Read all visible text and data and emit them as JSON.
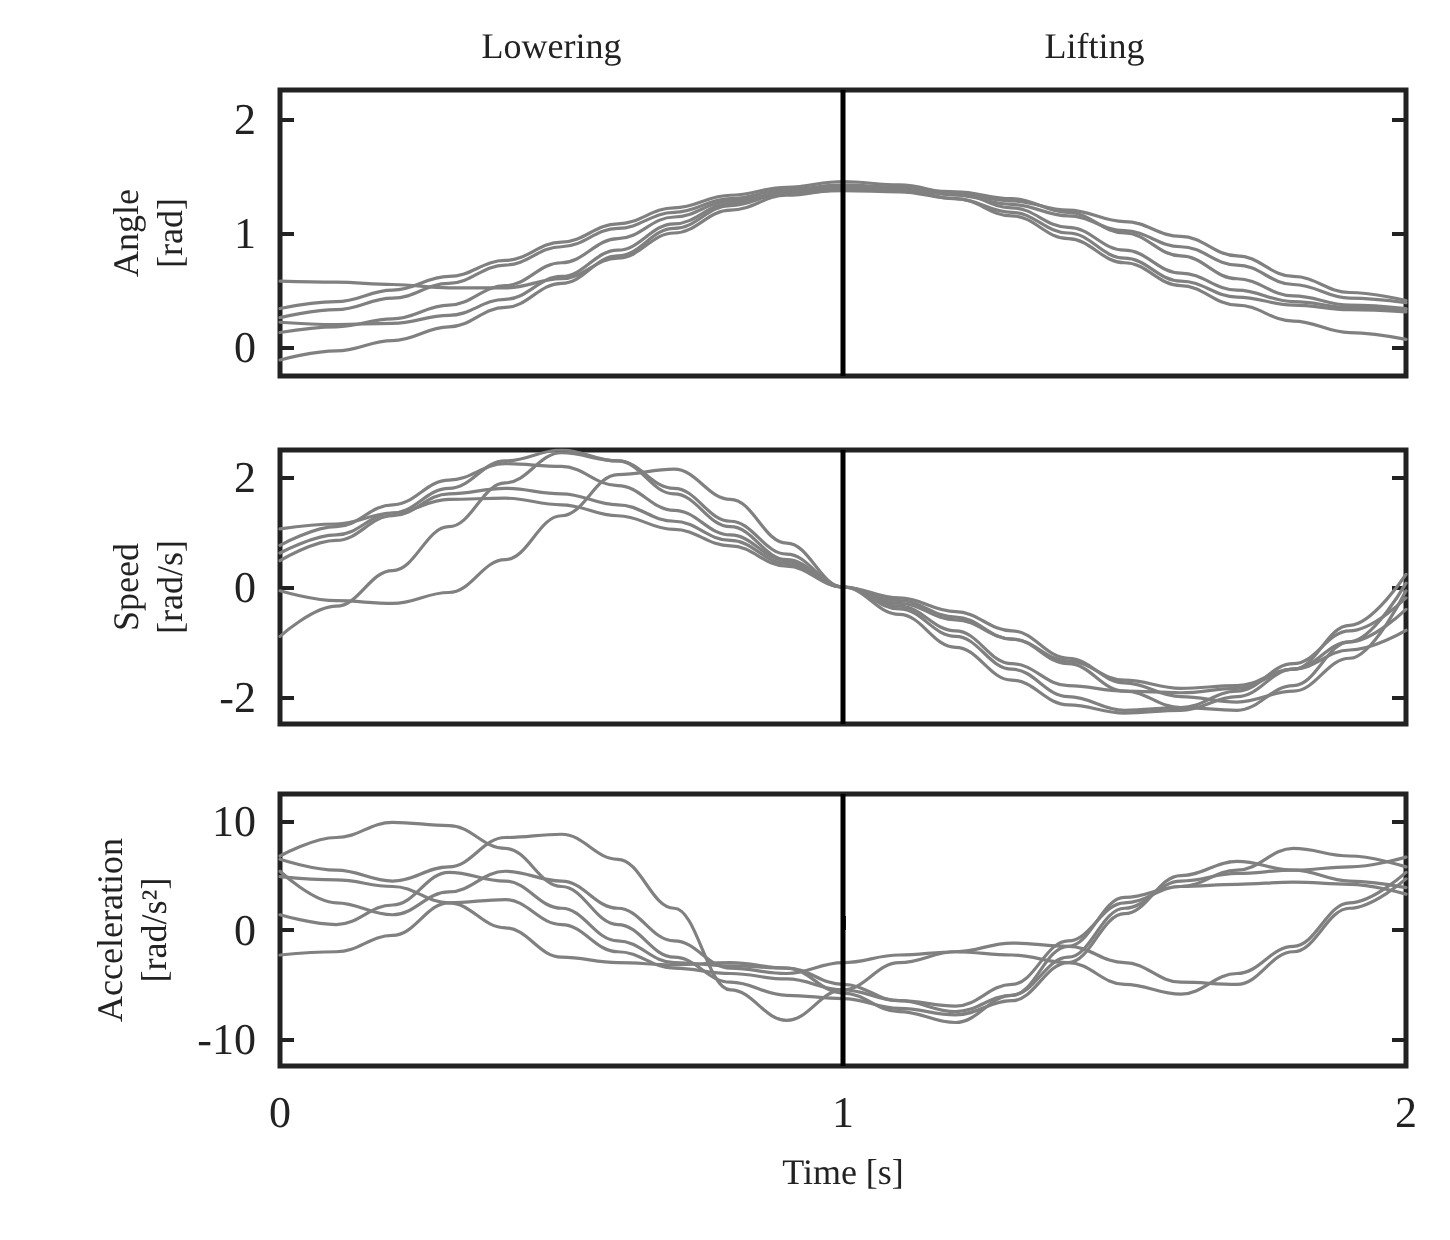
{
  "chart_data": [
    {
      "type": "line",
      "ylabel": "Angle\n[rad]",
      "annotations": [
        "Lowering",
        "Lifting"
      ],
      "tick_labels": "y",
      "x": [
        0,
        0.1,
        0.2,
        0.3,
        0.4,
        0.5,
        0.6,
        0.7,
        0.8,
        0.9,
        1,
        1.1,
        1.2,
        1.3,
        1.4,
        1.5,
        1.6,
        1.7,
        1.8,
        1.9,
        2
      ],
      "xlim": [
        0,
        2
      ],
      "xticks": [
        0,
        1,
        2
      ],
      "ylim": [
        -0.25,
        2.25
      ],
      "yticks": [
        0,
        1,
        2
      ],
      "ref_lines": [
        {
          "axis": "x",
          "value": 1,
          "color": "#000000"
        }
      ],
      "series": [
        {
          "color": "#808080",
          "values": [
            0.58,
            0.57,
            0.55,
            0.52,
            0.52,
            0.6,
            0.78,
            1.0,
            1.2,
            1.33,
            1.38,
            1.38,
            1.36,
            1.3,
            1.18,
            1.0,
            0.8,
            0.6,
            0.45,
            0.37,
            0.34
          ]
        },
        {
          "color": "#808080",
          "values": [
            0.34,
            0.4,
            0.5,
            0.62,
            0.76,
            0.92,
            1.08,
            1.22,
            1.33,
            1.4,
            1.45,
            1.42,
            1.35,
            1.22,
            1.05,
            0.85,
            0.65,
            0.5,
            0.4,
            0.35,
            0.33
          ]
        },
        {
          "color": "#808080",
          "values": [
            0.26,
            0.33,
            0.43,
            0.56,
            0.72,
            0.88,
            1.04,
            1.18,
            1.3,
            1.38,
            1.42,
            1.4,
            1.33,
            1.25,
            1.15,
            1.02,
            0.88,
            0.72,
            0.55,
            0.43,
            0.39
          ]
        },
        {
          "color": "#808080",
          "values": [
            0.22,
            0.2,
            0.21,
            0.28,
            0.42,
            0.62,
            0.85,
            1.08,
            1.26,
            1.36,
            1.4,
            1.38,
            1.34,
            1.28,
            1.2,
            1.1,
            0.97,
            0.8,
            0.62,
            0.48,
            0.41
          ]
        },
        {
          "color": "#808080",
          "values": [
            0.13,
            0.18,
            0.25,
            0.37,
            0.54,
            0.74,
            0.95,
            1.14,
            1.28,
            1.35,
            1.37,
            1.36,
            1.3,
            1.18,
            1.0,
            0.78,
            0.58,
            0.44,
            0.37,
            0.33,
            0.31
          ]
        },
        {
          "color": "#808080",
          "values": [
            -0.11,
            -0.03,
            0.06,
            0.18,
            0.35,
            0.56,
            0.8,
            1.04,
            1.24,
            1.35,
            1.4,
            1.38,
            1.3,
            1.15,
            0.95,
            0.74,
            0.54,
            0.37,
            0.23,
            0.13,
            0.07
          ]
        }
      ]
    },
    {
      "type": "line",
      "ylabel": "Speed\n[rad/s]",
      "tick_labels": "y",
      "x": [
        0,
        0.1,
        0.2,
        0.3,
        0.4,
        0.5,
        0.6,
        0.7,
        0.8,
        0.9,
        1,
        1.1,
        1.2,
        1.3,
        1.4,
        1.5,
        1.6,
        1.7,
        1.8,
        1.9,
        2
      ],
      "xlim": [
        0,
        2
      ],
      "xticks": [
        0,
        1,
        2
      ],
      "ylim": [
        -2.5,
        2.5
      ],
      "yticks": [
        -2,
        0,
        2
      ],
      "ref_lines": [
        {
          "axis": "x",
          "value": 1,
          "color": "#000000"
        }
      ],
      "series": [
        {
          "color": "#808080",
          "values": [
            1.06,
            1.15,
            1.35,
            1.6,
            1.62,
            1.5,
            1.3,
            1.05,
            0.75,
            0.38,
            0,
            -0.3,
            -0.6,
            -0.95,
            -1.35,
            -1.7,
            -1.85,
            -1.8,
            -1.5,
            -1.0,
            -0.41
          ]
        },
        {
          "color": "#808080",
          "values": [
            0.76,
            1.1,
            1.5,
            1.95,
            2.25,
            2.2,
            1.85,
            1.4,
            0.95,
            0.48,
            0,
            -0.25,
            -0.55,
            -0.95,
            -1.4,
            -1.9,
            -2.2,
            -2.25,
            -1.8,
            -1.0,
            0.07
          ]
        },
        {
          "color": "#808080",
          "values": [
            0.62,
            0.95,
            1.35,
            1.8,
            2.3,
            2.5,
            2.3,
            1.8,
            1.2,
            0.6,
            0,
            -0.5,
            -1.1,
            -1.7,
            -2.15,
            -2.3,
            -2.25,
            -2.0,
            -1.5,
            -0.7,
            0.23
          ]
        },
        {
          "color": "#808080",
          "values": [
            0.48,
            0.85,
            1.3,
            1.7,
            1.8,
            1.7,
            1.5,
            1.2,
            0.85,
            0.43,
            0,
            -0.2,
            -0.45,
            -0.8,
            -1.3,
            -1.75,
            -2.0,
            -2.1,
            -1.9,
            -1.3,
            -0.07
          ]
        },
        {
          "color": "#808080",
          "values": [
            -0.07,
            -0.25,
            -0.3,
            -0.1,
            0.5,
            1.3,
            2.05,
            2.15,
            1.6,
            0.8,
            0,
            -0.35,
            -0.8,
            -1.4,
            -1.8,
            -1.9,
            -1.93,
            -1.85,
            -1.5,
            -1.15,
            -0.79
          ]
        },
        {
          "color": "#808080",
          "values": [
            -0.9,
            -0.35,
            0.3,
            1.1,
            1.9,
            2.45,
            2.3,
            1.7,
            1.1,
            0.5,
            0,
            -0.4,
            -0.9,
            -1.5,
            -2.0,
            -2.25,
            -2.2,
            -1.9,
            -1.4,
            -0.8,
            -0.2
          ]
        }
      ]
    },
    {
      "type": "line",
      "ylabel": "Acceleration\n[rad/s²]",
      "xlabel": "Time [s]",
      "x": [
        0,
        0.1,
        0.2,
        0.3,
        0.4,
        0.5,
        0.6,
        0.7,
        0.8,
        0.9,
        1,
        1.1,
        1.2,
        1.3,
        1.4,
        1.5,
        1.6,
        1.7,
        1.8,
        1.9,
        2
      ],
      "xlim": [
        0,
        2
      ],
      "xticks": [
        0,
        1,
        2
      ],
      "ylim": [
        -12.5,
        12.5
      ],
      "yticks": [
        -10,
        0,
        10
      ],
      "ref_lines": [
        {
          "axis": "x",
          "value": 1,
          "color": "#000000"
        }
      ],
      "series": [
        {
          "color": "#808080",
          "values": [
            6.8,
            8.5,
            9.9,
            9.6,
            7.5,
            4,
            0.5,
            -2.5,
            -4.8,
            -6,
            -6.3,
            -7.2,
            -7.8,
            -6.5,
            -3,
            1.5,
            5,
            6.3,
            5.5,
            4.5,
            3.9
          ]
        },
        {
          "color": "#808080",
          "values": [
            6.5,
            5.5,
            4.5,
            5.8,
            8.5,
            8.8,
            6.5,
            2,
            -5.5,
            -8.3,
            -5.5,
            -3,
            -2,
            -1.2,
            -1.5,
            -3,
            -4.8,
            -5,
            -2,
            2,
            4.7
          ]
        },
        {
          "color": "#808080",
          "values": [
            5.4,
            2.5,
            1.4,
            3.5,
            5.4,
            4.5,
            2,
            -1,
            -3.5,
            -4,
            -3,
            -2.3,
            -2,
            -2.3,
            -3,
            -5,
            -5.9,
            -4,
            -1.5,
            2.5,
            5.3
          ]
        },
        {
          "color": "#808080",
          "values": [
            4.9,
            4.6,
            4,
            2.5,
            0.2,
            -2.5,
            -3,
            -3.2,
            -3,
            -3.5,
            -5,
            -6.5,
            -7.5,
            -6,
            -2.5,
            2,
            4.5,
            5.2,
            5.5,
            5.8,
            6.7
          ]
        },
        {
          "color": "#808080",
          "values": [
            1.4,
            0.5,
            2.3,
            5.3,
            4.5,
            2,
            -1,
            -3,
            -3.3,
            -3.5,
            -5.8,
            -7.5,
            -8.5,
            -6,
            -1.5,
            3,
            4,
            4.2,
            4.4,
            4.2,
            3.3
          ]
        },
        {
          "color": "#808080",
          "values": [
            -2.3,
            -2,
            -0.5,
            2.5,
            2.8,
            0.5,
            -2,
            -3.5,
            -4,
            -4.5,
            -5.5,
            -6.5,
            -7,
            -5,
            -1,
            2.5,
            4,
            5.5,
            7.5,
            6.8,
            5.8
          ]
        }
      ]
    }
  ]
}
